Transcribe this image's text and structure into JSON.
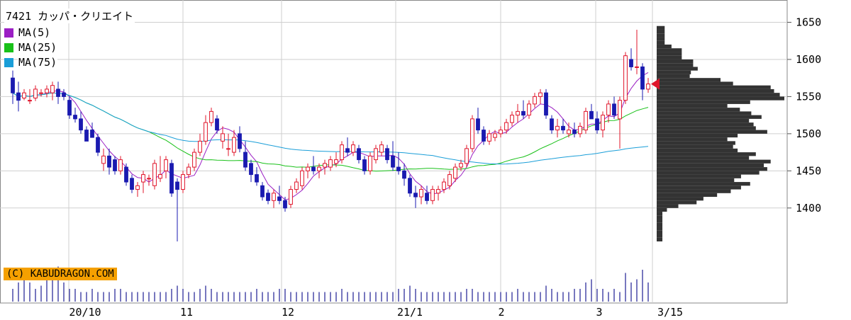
{
  "header": {
    "code": "7421",
    "name": "カッパ・クリエイト"
  },
  "legend": [
    {
      "label": "MA(5)",
      "color": "#9b1fc4"
    },
    {
      "label": "MA(25)",
      "color": "#19c119"
    },
    {
      "label": "MA(75)",
      "color": "#1a9ed8"
    }
  ],
  "copyright": "(C) KABUDRAGON.COM",
  "colors": {
    "up": "#e0142a",
    "down": "#1a1ab0",
    "ma5": "#9b1fc4",
    "ma25": "#19c119",
    "ma75": "#1a9ed8",
    "volume": "#4a4aa8",
    "profile": "#333333",
    "marker": "#e0142a"
  },
  "chart_data": {
    "type": "candlestick",
    "y_axis": {
      "range": [
        1335,
        1680
      ],
      "ticks": [
        1400,
        1450,
        1500,
        1550,
        1600,
        1650
      ],
      "position": "right"
    },
    "x_labels": [
      "20/10",
      "11",
      "12",
      "21/1",
      "2",
      "3",
      "3/15"
    ],
    "grid": true,
    "last_price": 1567,
    "candles": [
      [
        1575,
        1585,
        1540,
        1555
      ],
      [
        1555,
        1570,
        1530,
        1545
      ],
      [
        1548,
        1560,
        1545,
        1555
      ],
      [
        1545,
        1560,
        1540,
        1545
      ],
      [
        1548,
        1565,
        1544,
        1560
      ],
      [
        1555,
        1560,
        1550,
        1555
      ],
      [
        1555,
        1565,
        1549,
        1560
      ],
      [
        1555,
        1570,
        1545,
        1565
      ],
      [
        1560,
        1570,
        1540,
        1550
      ],
      [
        1555,
        1560,
        1545,
        1550
      ],
      [
        1545,
        1550,
        1520,
        1525
      ],
      [
        1525,
        1535,
        1515,
        1520
      ],
      [
        1520,
        1530,
        1500,
        1505
      ],
      [
        1505,
        1510,
        1490,
        1490
      ],
      [
        1505,
        1515,
        1495,
        1495
      ],
      [
        1495,
        1500,
        1470,
        1475
      ],
      [
        1460,
        1480,
        1450,
        1470
      ],
      [
        1470,
        1480,
        1445,
        1455
      ],
      [
        1465,
        1470,
        1445,
        1450
      ],
      [
        1450,
        1470,
        1445,
        1465
      ],
      [
        1455,
        1460,
        1430,
        1435
      ],
      [
        1440,
        1445,
        1420,
        1425
      ],
      [
        1425,
        1435,
        1415,
        1430
      ],
      [
        1435,
        1450,
        1420,
        1445
      ],
      [
        1440,
        1445,
        1430,
        1440
      ],
      [
        1430,
        1465,
        1425,
        1460
      ],
      [
        1440,
        1470,
        1435,
        1445
      ],
      [
        1450,
        1470,
        1440,
        1465
      ],
      [
        1460,
        1465,
        1415,
        1420
      ],
      [
        1435,
        1440,
        1355,
        1425
      ],
      [
        1425,
        1450,
        1420,
        1445
      ],
      [
        1445,
        1460,
        1440,
        1455
      ],
      [
        1455,
        1480,
        1450,
        1475
      ],
      [
        1475,
        1500,
        1470,
        1490
      ],
      [
        1490,
        1525,
        1485,
        1515
      ],
      [
        1515,
        1535,
        1510,
        1530
      ],
      [
        1520,
        1525,
        1500,
        1505
      ],
      [
        1490,
        1510,
        1480,
        1500
      ],
      [
        1480,
        1500,
        1470,
        1480
      ],
      [
        1475,
        1505,
        1470,
        1495
      ],
      [
        1500,
        1510,
        1475,
        1480
      ],
      [
        1475,
        1490,
        1450,
        1455
      ],
      [
        1460,
        1465,
        1435,
        1445
      ],
      [
        1445,
        1455,
        1430,
        1435
      ],
      [
        1430,
        1435,
        1410,
        1415
      ],
      [
        1420,
        1425,
        1405,
        1410
      ],
      [
        1410,
        1425,
        1400,
        1420
      ],
      [
        1415,
        1430,
        1405,
        1410
      ],
      [
        1410,
        1415,
        1395,
        1400
      ],
      [
        1405,
        1430,
        1400,
        1425
      ],
      [
        1425,
        1440,
        1420,
        1435
      ],
      [
        1430,
        1455,
        1425,
        1450
      ],
      [
        1450,
        1460,
        1440,
        1455
      ],
      [
        1455,
        1470,
        1445,
        1450
      ],
      [
        1450,
        1460,
        1440,
        1455
      ],
      [
        1455,
        1465,
        1445,
        1460
      ],
      [
        1455,
        1470,
        1450,
        1465
      ],
      [
        1460,
        1475,
        1455,
        1465
      ],
      [
        1465,
        1490,
        1460,
        1485
      ],
      [
        1480,
        1495,
        1470,
        1475
      ],
      [
        1475,
        1490,
        1470,
        1485
      ],
      [
        1480,
        1485,
        1460,
        1465
      ],
      [
        1465,
        1470,
        1445,
        1450
      ],
      [
        1450,
        1475,
        1445,
        1470
      ],
      [
        1465,
        1485,
        1460,
        1480
      ],
      [
        1475,
        1490,
        1470,
        1485
      ],
      [
        1480,
        1485,
        1460,
        1465
      ],
      [
        1470,
        1490,
        1450,
        1455
      ],
      [
        1455,
        1475,
        1445,
        1450
      ],
      [
        1450,
        1460,
        1430,
        1440
      ],
      [
        1440,
        1445,
        1415,
        1420
      ],
      [
        1420,
        1430,
        1400,
        1415
      ],
      [
        1415,
        1430,
        1405,
        1425
      ],
      [
        1420,
        1430,
        1405,
        1410
      ],
      [
        1410,
        1430,
        1405,
        1425
      ],
      [
        1420,
        1430,
        1410,
        1425
      ],
      [
        1425,
        1440,
        1420,
        1435
      ],
      [
        1430,
        1450,
        1425,
        1445
      ],
      [
        1440,
        1460,
        1435,
        1455
      ],
      [
        1455,
        1465,
        1450,
        1460
      ],
      [
        1460,
        1485,
        1455,
        1480
      ],
      [
        1480,
        1525,
        1475,
        1520
      ],
      [
        1520,
        1535,
        1500,
        1505
      ],
      [
        1505,
        1510,
        1485,
        1490
      ],
      [
        1490,
        1505,
        1485,
        1500
      ],
      [
        1495,
        1505,
        1490,
        1500
      ],
      [
        1500,
        1510,
        1495,
        1505
      ],
      [
        1505,
        1520,
        1500,
        1515
      ],
      [
        1515,
        1530,
        1510,
        1525
      ],
      [
        1525,
        1540,
        1515,
        1530
      ],
      [
        1530,
        1545,
        1520,
        1525
      ],
      [
        1525,
        1545,
        1520,
        1540
      ],
      [
        1540,
        1555,
        1535,
        1550
      ],
      [
        1550,
        1560,
        1540,
        1555
      ],
      [
        1555,
        1560,
        1520,
        1525
      ],
      [
        1520,
        1525,
        1500,
        1505
      ],
      [
        1505,
        1520,
        1495,
        1510
      ],
      [
        1510,
        1520,
        1500,
        1505
      ],
      [
        1500,
        1515,
        1495,
        1505
      ],
      [
        1505,
        1515,
        1495,
        1500
      ],
      [
        1500,
        1515,
        1495,
        1510
      ],
      [
        1505,
        1535,
        1500,
        1530
      ],
      [
        1530,
        1540,
        1520,
        1520
      ],
      [
        1520,
        1530,
        1500,
        1505
      ],
      [
        1505,
        1530,
        1495,
        1525
      ],
      [
        1525,
        1545,
        1515,
        1540
      ],
      [
        1540,
        1550,
        1520,
        1525
      ],
      [
        1520,
        1550,
        1480,
        1545
      ],
      [
        1545,
        1610,
        1540,
        1605
      ],
      [
        1600,
        1615,
        1585,
        1590
      ],
      [
        1590,
        1640,
        1580,
        1590
      ],
      [
        1590,
        1595,
        1545,
        1560
      ],
      [
        1560,
        1575,
        1555,
        1567
      ]
    ],
    "volume": [
      0.2,
      0.3,
      0.4,
      0.3,
      0.2,
      0.25,
      0.35,
      0.5,
      0.55,
      0.3,
      0.2,
      0.2,
      0.15,
      0.15,
      0.2,
      0.15,
      0.15,
      0.15,
      0.2,
      0.2,
      0.15,
      0.15,
      0.15,
      0.15,
      0.15,
      0.15,
      0.15,
      0.15,
      0.2,
      0.25,
      0.2,
      0.15,
      0.15,
      0.2,
      0.25,
      0.2,
      0.15,
      0.15,
      0.15,
      0.15,
      0.15,
      0.15,
      0.15,
      0.2,
      0.15,
      0.15,
      0.15,
      0.2,
      0.2,
      0.15,
      0.15,
      0.15,
      0.15,
      0.15,
      0.15,
      0.15,
      0.15,
      0.15,
      0.2,
      0.15,
      0.15,
      0.15,
      0.15,
      0.15,
      0.15,
      0.15,
      0.15,
      0.15,
      0.2,
      0.2,
      0.25,
      0.2,
      0.15,
      0.15,
      0.15,
      0.15,
      0.15,
      0.15,
      0.15,
      0.15,
      0.2,
      0.2,
      0.15,
      0.15,
      0.15,
      0.15,
      0.15,
      0.15,
      0.15,
      0.2,
      0.15,
      0.15,
      0.15,
      0.15,
      0.25,
      0.2,
      0.15,
      0.15,
      0.15,
      0.2,
      0.2,
      0.3,
      0.35,
      0.2,
      0.2,
      0.15,
      0.2,
      0.15,
      0.45,
      0.3,
      0.35,
      0.5,
      0.3
    ]
  }
}
